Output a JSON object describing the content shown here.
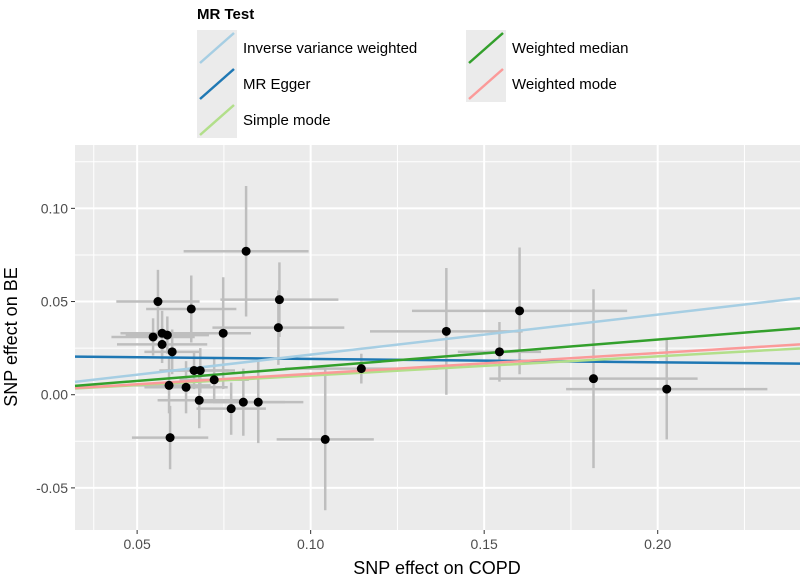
{
  "chart_data": {
    "type": "scatter",
    "title": "",
    "xlabel": "SNP effect on COPD",
    "ylabel": "SNP effect on BE",
    "xlim": [
      0.0321,
      0.241
    ],
    "ylim": [
      -0.0726,
      0.134
    ],
    "grid": true,
    "x_ticks": [
      0.05,
      0.1,
      0.15,
      0.2
    ],
    "x_tick_labels": [
      "0.05",
      "0.10",
      "0.15",
      "0.20"
    ],
    "y_ticks": [
      -0.05,
      0.0,
      0.05,
      0.1
    ],
    "y_tick_labels": [
      "-0.05",
      "0.00",
      "0.05",
      "0.10"
    ],
    "legend": {
      "title": "MR Test",
      "placement": "top",
      "entries": [
        {
          "label": "Inverse variance weighted",
          "color": "#A6CEE3"
        },
        {
          "label": "MR Egger",
          "color": "#1F78B4"
        },
        {
          "label": "Simple mode",
          "color": "#B2DF8A"
        },
        {
          "label": "Weighted median",
          "color": "#33A02C"
        },
        {
          "label": "Weighted mode",
          "color": "#FB9A99"
        }
      ]
    },
    "points": [
      {
        "x": 0.056,
        "y": 0.05,
        "xse": 0.012,
        "yse": 0.017
      },
      {
        "x": 0.0656,
        "y": 0.046,
        "xse": 0.013,
        "yse": 0.018
      },
      {
        "x": 0.0814,
        "y": 0.077,
        "xse": 0.018,
        "yse": 0.035
      },
      {
        "x": 0.091,
        "y": 0.051,
        "xse": 0.017,
        "yse": 0.02
      },
      {
        "x": 0.0907,
        "y": 0.036,
        "xse": 0.019,
        "yse": 0.02
      },
      {
        "x": 0.0748,
        "y": 0.033,
        "xse": 0.008,
        "yse": 0.03
      },
      {
        "x": 0.0546,
        "y": 0.031,
        "xse": 0.012,
        "yse": 0.01
      },
      {
        "x": 0.0572,
        "y": 0.033,
        "xse": 0.012,
        "yse": 0.012
      },
      {
        "x": 0.0587,
        "y": 0.032,
        "xse": 0.012,
        "yse": 0.01
      },
      {
        "x": 0.0572,
        "y": 0.027,
        "xse": 0.013,
        "yse": 0.01
      },
      {
        "x": 0.0601,
        "y": 0.023,
        "xse": 0.008,
        "yse": 0.012
      },
      {
        "x": 0.0664,
        "y": 0.013,
        "xse": 0.01,
        "yse": 0.01
      },
      {
        "x": 0.0682,
        "y": 0.013,
        "xse": 0.01,
        "yse": 0.012
      },
      {
        "x": 0.0592,
        "y": 0.005,
        "xse": 0.012,
        "yse": 0.015
      },
      {
        "x": 0.0641,
        "y": 0.004,
        "xse": 0.012,
        "yse": 0.014
      },
      {
        "x": 0.0722,
        "y": 0.008,
        "xse": 0.01,
        "yse": 0.012
      },
      {
        "x": 0.0679,
        "y": -0.003,
        "xse": 0.012,
        "yse": 0.015
      },
      {
        "x": 0.0771,
        "y": -0.0075,
        "xse": 0.01,
        "yse": 0.014
      },
      {
        "x": 0.0806,
        "y": -0.004,
        "xse": 0.012,
        "yse": 0.018
      },
      {
        "x": 0.0849,
        "y": -0.004,
        "xse": 0.013,
        "yse": 0.022
      },
      {
        "x": 0.0595,
        "y": -0.023,
        "xse": 0.011,
        "yse": 0.017
      },
      {
        "x": 0.1042,
        "y": -0.024,
        "xse": 0.014,
        "yse": 0.038
      },
      {
        "x": 0.1146,
        "y": 0.014,
        "xse": 0.022,
        "yse": 0.008
      },
      {
        "x": 0.1391,
        "y": 0.034,
        "xse": 0.022,
        "yse": 0.034
      },
      {
        "x": 0.1544,
        "y": 0.023,
        "xse": 0.012,
        "yse": 0.016
      },
      {
        "x": 0.1602,
        "y": 0.045,
        "xse": 0.031,
        "yse": 0.034
      },
      {
        "x": 0.1815,
        "y": 0.0086,
        "xse": 0.03,
        "yse": 0.048
      },
      {
        "x": 0.2026,
        "y": 0.003,
        "xse": 0.029,
        "yse": 0.027
      }
    ],
    "series": [
      {
        "name": "Inverse variance weighted",
        "intercept": 0.0,
        "slope": 0.215
      },
      {
        "name": "MR Egger",
        "intercept": 0.021,
        "slope": -0.018
      },
      {
        "name": "Simple mode",
        "intercept": 0.0,
        "slope": 0.103
      },
      {
        "name": "Weighted median",
        "intercept": 0.0,
        "slope": 0.148
      },
      {
        "name": "Weighted mode",
        "intercept": 0.0,
        "slope": 0.112
      }
    ]
  }
}
